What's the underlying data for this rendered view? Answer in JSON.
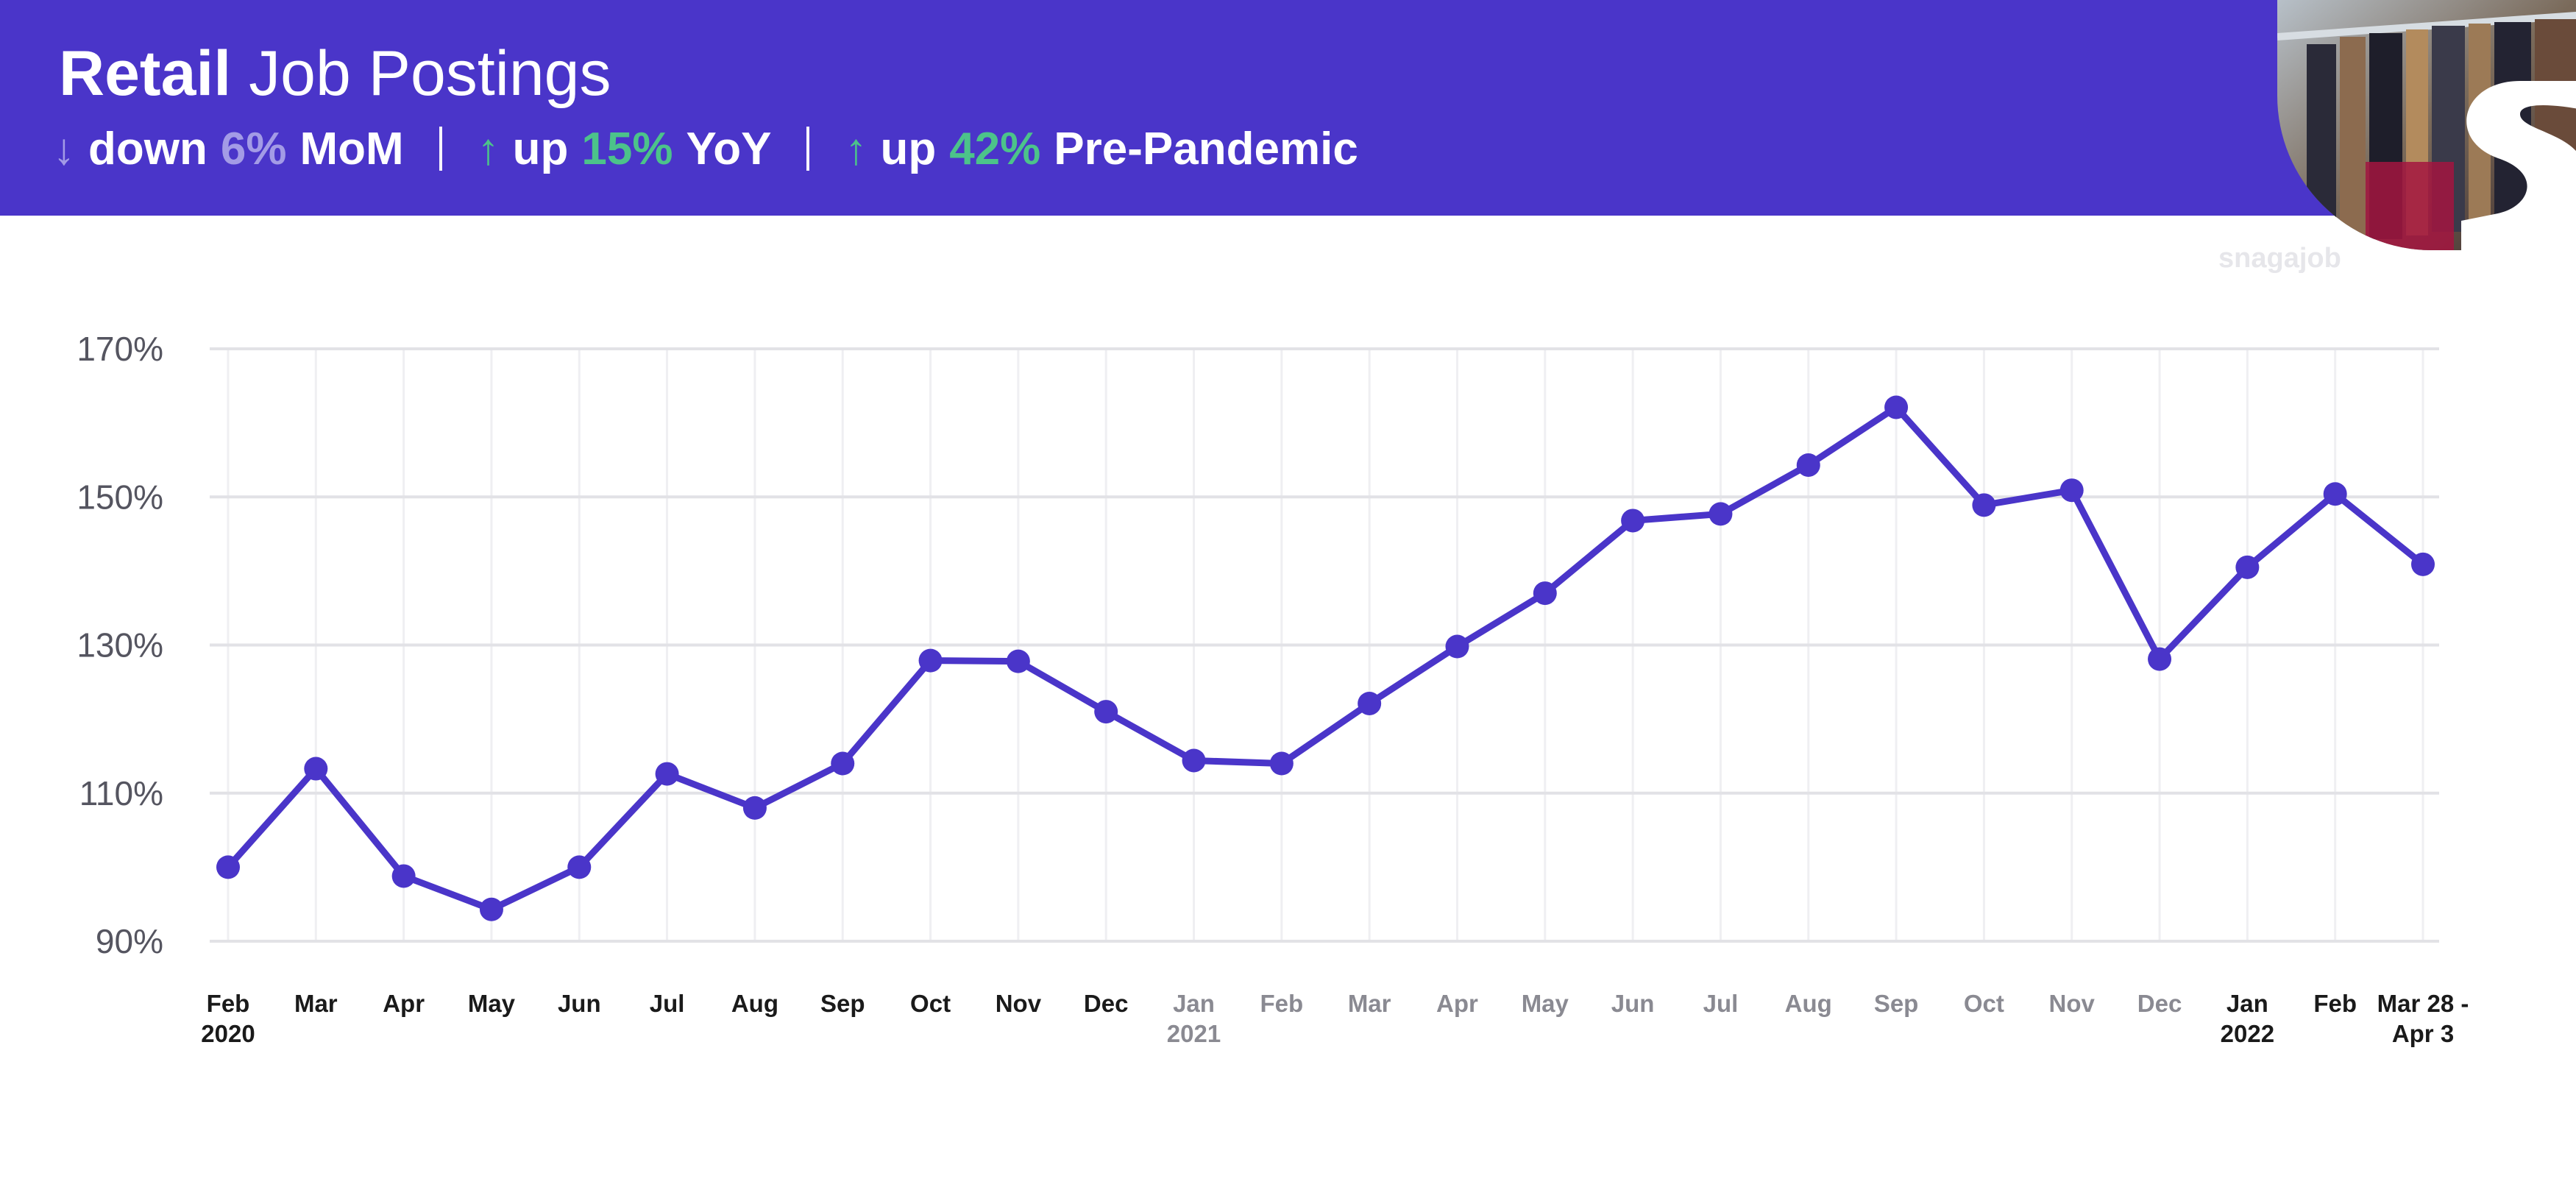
{
  "header": {
    "title_bold": "Retail",
    "title_rest": "Job Postings",
    "stats": [
      {
        "arrow": "↓",
        "direction": "down",
        "word": "down",
        "value": "6%",
        "label": "MoM"
      },
      {
        "arrow": "↑",
        "direction": "up",
        "word": "up",
        "value": "15%",
        "label": "YoY"
      },
      {
        "arrow": "↑",
        "direction": "up",
        "word": "up",
        "value": "42%",
        "label": "Pre-Pandemic"
      }
    ],
    "background_color": "#4a35c9",
    "down_color": "#a39be6",
    "up_color": "#4cc38a"
  },
  "brand": {
    "watermark": "snagajob",
    "logo_icon": "snagajob-s-logo-icon",
    "photo": "clothing-rack-photo"
  },
  "chart_data": {
    "type": "line",
    "title": "",
    "xlabel": "",
    "ylabel": "",
    "ylim": [
      90,
      170
    ],
    "y_ticks": [
      "170%",
      "150%",
      "130%",
      "110%",
      "90%"
    ],
    "y_tick_values": [
      170,
      150,
      130,
      110,
      90
    ],
    "grid": true,
    "line_color": "#4a35c9",
    "categories": [
      {
        "label": "Feb",
        "sub": "2020",
        "dim": false
      },
      {
        "label": "Mar",
        "sub": "",
        "dim": false
      },
      {
        "label": "Apr",
        "sub": "",
        "dim": false
      },
      {
        "label": "May",
        "sub": "",
        "dim": false
      },
      {
        "label": "Jun",
        "sub": "",
        "dim": false
      },
      {
        "label": "Jul",
        "sub": "",
        "dim": false
      },
      {
        "label": "Aug",
        "sub": "",
        "dim": false
      },
      {
        "label": "Sep",
        "sub": "",
        "dim": false
      },
      {
        "label": "Oct",
        "sub": "",
        "dim": false
      },
      {
        "label": "Nov",
        "sub": "",
        "dim": false
      },
      {
        "label": "Dec",
        "sub": "",
        "dim": false
      },
      {
        "label": "Jan",
        "sub": "2021",
        "dim": true
      },
      {
        "label": "Feb",
        "sub": "",
        "dim": true
      },
      {
        "label": "Mar",
        "sub": "",
        "dim": true
      },
      {
        "label": "Apr",
        "sub": "",
        "dim": true
      },
      {
        "label": "May",
        "sub": "",
        "dim": true
      },
      {
        "label": "Jun",
        "sub": "",
        "dim": true
      },
      {
        "label": "Jul",
        "sub": "",
        "dim": true
      },
      {
        "label": "Aug",
        "sub": "",
        "dim": true
      },
      {
        "label": "Sep",
        "sub": "",
        "dim": true
      },
      {
        "label": "Oct",
        "sub": "",
        "dim": true
      },
      {
        "label": "Nov",
        "sub": "",
        "dim": true
      },
      {
        "label": "Dec",
        "sub": "",
        "dim": true
      },
      {
        "label": "Jan",
        "sub": "2022",
        "dim": false
      },
      {
        "label": "Feb",
        "sub": "",
        "dim": false
      },
      {
        "label": "Mar 28 -",
        "sub": "Apr 3",
        "dim": false
      }
    ],
    "series": [
      {
        "values": [
          100,
          113.3,
          98.8,
          94.3,
          100,
          112.6,
          108,
          114,
          127.9,
          127.8,
          121,
          114.4,
          114,
          122.1,
          129.8,
          137,
          146.8,
          147.7,
          154.3,
          162.1,
          148.9,
          150.9,
          128.1,
          140.5,
          150.4,
          140.9
        ]
      }
    ]
  }
}
